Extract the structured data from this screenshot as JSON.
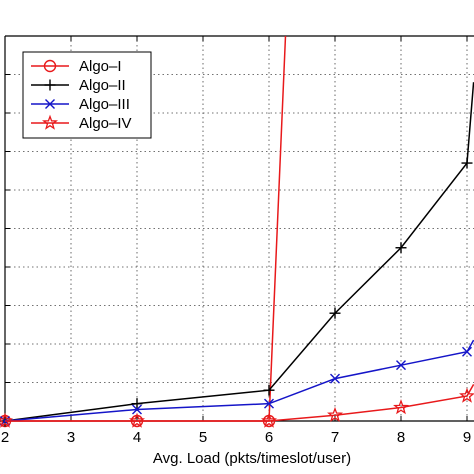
{
  "chart_data": {
    "type": "line",
    "xlabel": "Avg. Load (pkts/timeslot/user)",
    "ylabel": "",
    "title": "",
    "x_ticks": [
      2,
      3,
      4,
      5,
      6,
      7,
      8,
      9
    ],
    "xlim": [
      2,
      9.1
    ],
    "ylim": [
      0,
      10
    ],
    "grid": true,
    "legend_position": "top-left",
    "series": [
      {
        "name": "Algo–I",
        "color": "#e8191b",
        "marker": "circle",
        "x": [
          2,
          4,
          6,
          6.25
        ],
        "y": [
          0,
          0,
          0,
          10
        ]
      },
      {
        "name": "Algo–II",
        "color": "#000000",
        "marker": "plus",
        "x": [
          2,
          4,
          6,
          7,
          8,
          9,
          9.1
        ],
        "y": [
          0,
          0.45,
          0.8,
          2.8,
          4.5,
          6.7,
          8.8
        ]
      },
      {
        "name": "Algo–III",
        "color": "#1515c8",
        "marker": "x",
        "x": [
          2,
          4,
          6,
          7,
          8,
          9,
          9.1
        ],
        "y": [
          0,
          0.3,
          0.45,
          1.1,
          1.45,
          1.8,
          2.1
        ]
      },
      {
        "name": "Algo–IV",
        "color": "#e8191b",
        "marker": "star",
        "x": [
          2,
          4,
          6,
          7,
          8,
          9,
          9.1
        ],
        "y": [
          0,
          0,
          0,
          0.15,
          0.35,
          0.65,
          0.95
        ]
      }
    ]
  }
}
